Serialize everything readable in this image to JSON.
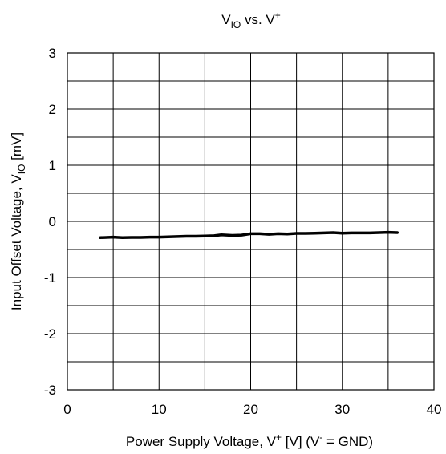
{
  "chart_data": {
    "type": "line",
    "title": {
      "main": "V",
      "sub": "IO",
      "rest": " vs. V",
      "sup": "+"
    },
    "xlabel": {
      "pre": "Power Supply Voltage, V",
      "sup1": "+",
      "mid": " [V] (V",
      "sup2": "-",
      "post": " = GND)"
    },
    "ylabel": {
      "pre": "Input Offset Voltage, V",
      "sub": "IO",
      "post": " [mV]"
    },
    "xlim": [
      0,
      40
    ],
    "ylim": [
      -3,
      3
    ],
    "x_ticks": [
      0,
      10,
      20,
      30,
      40
    ],
    "y_ticks": [
      3,
      2,
      1,
      0,
      -1,
      -2,
      -3
    ],
    "x_tick_labels": [
      "0",
      "10",
      "20",
      "30",
      "40"
    ],
    "y_tick_labels": [
      "3",
      "2",
      "1",
      "0",
      "-1",
      "-2",
      "-3"
    ],
    "x_minor_step": 5,
    "y_minor_step": 0.5,
    "grid": true,
    "series": [
      {
        "color": "#000000",
        "x": [
          3.6,
          5,
          6,
          7,
          8,
          9,
          10,
          11,
          12,
          13,
          14,
          15,
          16,
          16.8,
          18,
          19,
          20,
          21,
          22,
          23,
          24,
          25,
          26,
          27,
          28,
          29,
          30,
          31,
          32,
          33,
          34,
          35,
          36
        ],
        "y": [
          -0.29,
          -0.28,
          -0.29,
          -0.285,
          -0.285,
          -0.28,
          -0.28,
          -0.275,
          -0.27,
          -0.265,
          -0.265,
          -0.26,
          -0.255,
          -0.24,
          -0.25,
          -0.245,
          -0.22,
          -0.22,
          -0.23,
          -0.22,
          -0.225,
          -0.215,
          -0.215,
          -0.21,
          -0.205,
          -0.2,
          -0.21,
          -0.205,
          -0.205,
          -0.205,
          -0.2,
          -0.195,
          -0.2
        ]
      }
    ]
  }
}
